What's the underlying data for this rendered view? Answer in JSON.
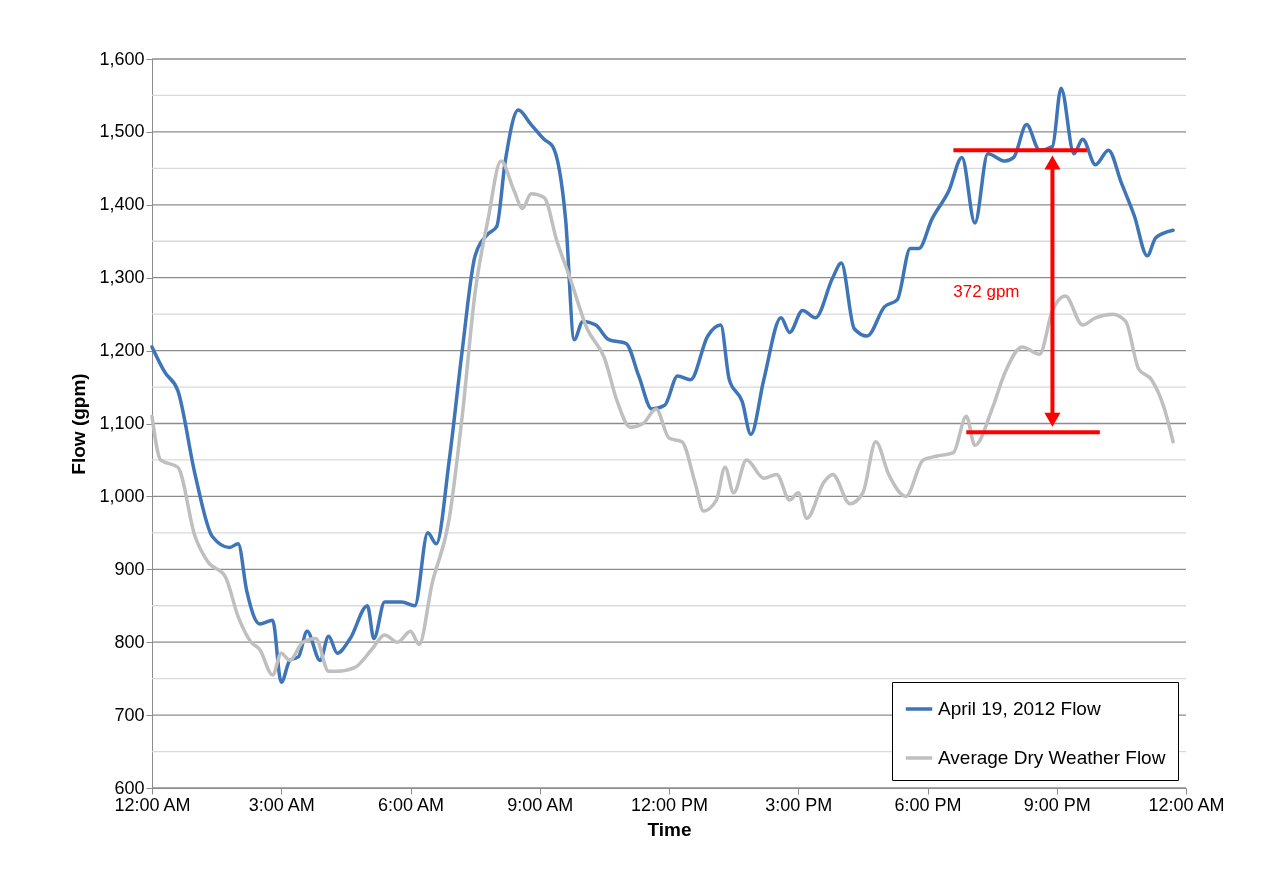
{
  "chart_data": {
    "type": "line",
    "xlabel": "Time",
    "ylabel": "Flow (gpm)",
    "xlim": [
      0,
      24
    ],
    "xticks": [
      {
        "value": 0,
        "label": "12:00 AM"
      },
      {
        "value": 3,
        "label": "3:00 AM"
      },
      {
        "value": 6,
        "label": "6:00 AM"
      },
      {
        "value": 9,
        "label": "9:00 AM"
      },
      {
        "value": 12,
        "label": "12:00 PM"
      },
      {
        "value": 15,
        "label": "3:00 PM"
      },
      {
        "value": 18,
        "label": "6:00 PM"
      },
      {
        "value": 21,
        "label": "9:00 PM"
      },
      {
        "value": 24,
        "label": "12:00 AM"
      }
    ],
    "ylim": [
      600,
      1600
    ],
    "yticks": [
      {
        "value": 600,
        "label": "600"
      },
      {
        "value": 650,
        "label": null
      },
      {
        "value": 700,
        "label": "700"
      },
      {
        "value": 750,
        "label": null
      },
      {
        "value": 800,
        "label": "800"
      },
      {
        "value": 850,
        "label": null
      },
      {
        "value": 900,
        "label": "900"
      },
      {
        "value": 950,
        "label": null
      },
      {
        "value": 1000,
        "label": "1,000"
      },
      {
        "value": 1050,
        "label": null
      },
      {
        "value": 1100,
        "label": "1,100"
      },
      {
        "value": 1150,
        "label": null
      },
      {
        "value": 1200,
        "label": "1,200"
      },
      {
        "value": 1250,
        "label": null
      },
      {
        "value": 1300,
        "label": "1,300"
      },
      {
        "value": 1350,
        "label": null
      },
      {
        "value": 1400,
        "label": "1,400"
      },
      {
        "value": 1450,
        "label": null
      },
      {
        "value": 1500,
        "label": "1,500"
      },
      {
        "value": 1550,
        "label": null
      },
      {
        "value": 1600,
        "label": "1,600"
      }
    ],
    "grid": "y",
    "legend": "bottom right",
    "line_style": "solid",
    "marker": "none",
    "series": [
      {
        "name": "April 19, 2012 Flow",
        "color": "#3e75b8",
        "x": [
          0,
          0.3,
          0.6,
          1.0,
          1.4,
          1.8,
          2.0,
          2.2,
          2.5,
          2.8,
          3.0,
          3.2,
          3.4,
          3.6,
          3.9,
          4.1,
          4.3,
          4.6,
          5.0,
          5.15,
          5.4,
          5.8,
          6.1,
          6.4,
          6.6,
          6.9,
          7.2,
          7.5,
          7.8,
          8.0,
          8.2,
          8.5,
          8.8,
          9.1,
          9.3,
          9.6,
          9.8,
          10.0,
          10.3,
          10.6,
          11.0,
          11.3,
          11.6,
          11.9,
          12.2,
          12.5,
          12.9,
          13.2,
          13.4,
          13.7,
          13.9,
          14.2,
          14.6,
          14.8,
          15.1,
          15.4,
          15.8,
          16.0,
          16.3,
          16.6,
          17.0,
          17.3,
          17.6,
          17.8,
          18.1,
          18.5,
          18.8,
          19.1,
          19.4,
          19.8,
          20.0,
          20.3,
          20.6,
          20.9,
          21.1,
          21.4,
          21.6,
          21.9,
          22.2,
          22.5,
          22.8,
          23.1,
          23.3,
          23.7
        ],
        "values": [
          1205,
          1170,
          1145,
          1030,
          945,
          930,
          935,
          870,
          825,
          830,
          745,
          775,
          780,
          815,
          775,
          808,
          785,
          805,
          850,
          805,
          855,
          855,
          850,
          950,
          935,
          1050,
          1200,
          1330,
          1360,
          1370,
          1460,
          1530,
          1510,
          1490,
          1480,
          1380,
          1215,
          1240,
          1235,
          1215,
          1210,
          1165,
          1120,
          1125,
          1165,
          1160,
          1220,
          1235,
          1160,
          1130,
          1085,
          1160,
          1245,
          1225,
          1255,
          1245,
          1300,
          1320,
          1230,
          1220,
          1260,
          1270,
          1340,
          1340,
          1380,
          1420,
          1465,
          1375,
          1470,
          1460,
          1465,
          1510,
          1475,
          1480,
          1560,
          1470,
          1490,
          1455,
          1475,
          1430,
          1385,
          1330,
          1355,
          1365
        ]
      },
      {
        "name": "Average Dry Weather Flow",
        "color": "#bfbfbf",
        "x": [
          0,
          0.2,
          0.6,
          1.0,
          1.3,
          1.7,
          2.0,
          2.3,
          2.5,
          2.8,
          3.0,
          3.2,
          3.5,
          3.8,
          4.1,
          4.3,
          4.7,
          5.1,
          5.4,
          5.7,
          6.0,
          6.2,
          6.5,
          6.9,
          7.2,
          7.5,
          7.8,
          8.1,
          8.4,
          8.6,
          8.8,
          9.1,
          9.4,
          9.7,
          10.1,
          10.5,
          10.8,
          11.1,
          11.4,
          11.7,
          12.0,
          12.3,
          12.6,
          12.8,
          13.1,
          13.3,
          13.5,
          13.8,
          14.2,
          14.5,
          14.8,
          15.0,
          15.2,
          15.6,
          15.8,
          16.2,
          16.5,
          16.8,
          17.1,
          17.5,
          17.9,
          18.2,
          18.6,
          18.9,
          19.1,
          19.5,
          19.8,
          20.2,
          20.6,
          20.9,
          21.2,
          21.6,
          21.9,
          22.3,
          22.6,
          22.9,
          23.2,
          23.5,
          23.7
        ],
        "values": [
          1110,
          1050,
          1040,
          945,
          910,
          890,
          835,
          800,
          790,
          755,
          785,
          775,
          800,
          805,
          760,
          760,
          765,
          790,
          810,
          800,
          815,
          797,
          880,
          970,
          1110,
          1280,
          1380,
          1460,
          1420,
          1395,
          1415,
          1410,
          1350,
          1300,
          1230,
          1190,
          1130,
          1095,
          1100,
          1120,
          1080,
          1075,
          1020,
          980,
          995,
          1040,
          1005,
          1050,
          1025,
          1030,
          995,
          1005,
          970,
          1020,
          1030,
          990,
          1005,
          1075,
          1030,
          1000,
          1050,
          1055,
          1060,
          1110,
          1070,
          1120,
          1170,
          1205,
          1195,
          1255,
          1275,
          1235,
          1245,
          1250,
          1240,
          1175,
          1160,
          1120,
          1075
        ]
      }
    ],
    "annotations": [
      "372 gpm"
    ]
  }
}
